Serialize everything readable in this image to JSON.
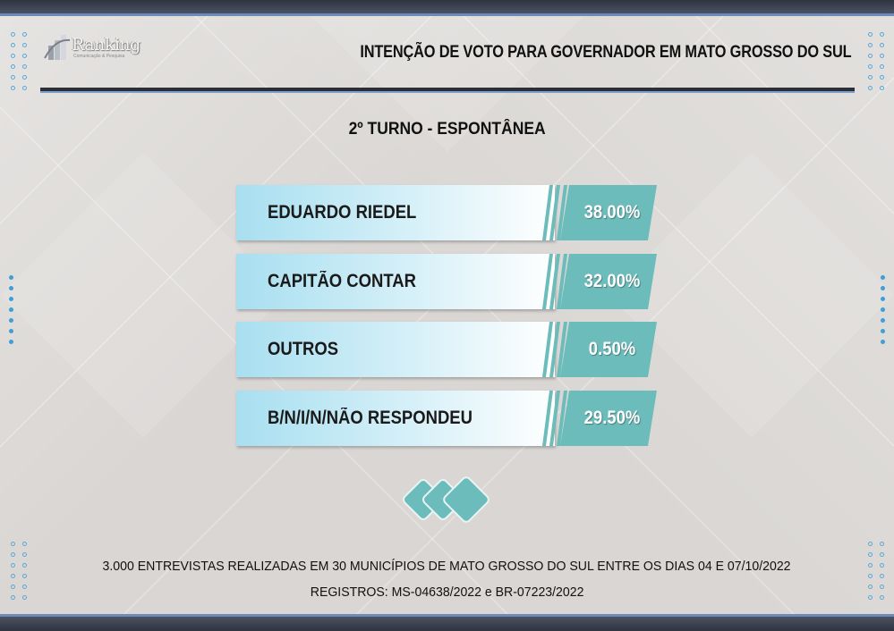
{
  "header": {
    "logo_text": "Ranking",
    "logo_subtext": "Comunicação & Pesquisa",
    "title": "INTENÇÃO DE VOTO PARA GOVERNADOR EM MATO GROSSO DO SUL"
  },
  "subtitle": "2º TURNO - ESPONTÂNEA",
  "colors": {
    "accent": "#6cbcbc",
    "bar_gradient_start": "#a8dff0",
    "dark_bar": "#2f3440",
    "dots": "#3f9ed6"
  },
  "chart_data": {
    "type": "bar",
    "orientation": "horizontal",
    "title": "2º TURNO - ESPONTÂNEA",
    "categories": [
      "EDUARDO RIEDEL",
      "CAPITÃO CONTAR",
      "OUTROS",
      "B/N/I/N/NÃO RESPONDEU"
    ],
    "values": [
      38.0,
      32.0,
      0.5,
      29.5
    ],
    "value_labels": [
      "38.00%",
      "32.00%",
      "0.50%",
      "29.50%"
    ],
    "unit": "%"
  },
  "footer": {
    "line1": "3.000 ENTREVISTAS REALIZADAS EM 30 MUNICÍPIOS DE MATO GROSSO DO SUL ENTRE OS DIAS 04 E 07/10/2022",
    "line2": "REGISTROS: MS-04638/2022 e BR-07223/2022"
  }
}
